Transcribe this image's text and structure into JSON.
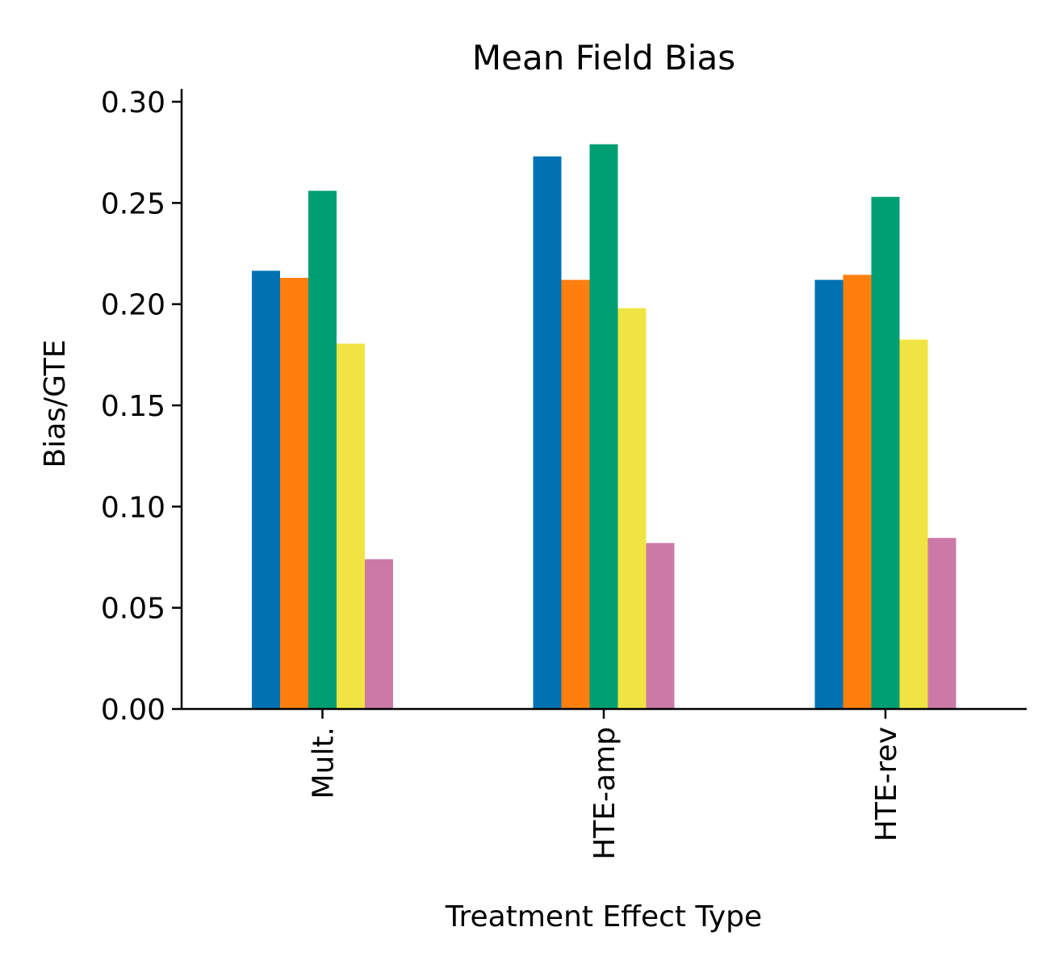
{
  "chart_data": {
    "type": "bar",
    "title": "Mean Field Bias",
    "xlabel": "Treatment Effect Type",
    "ylabel": "Bias/GTE",
    "categories": [
      "Mult.",
      "HTE-amp",
      "HTE-rev"
    ],
    "ylim": [
      0,
      0.3
    ],
    "yticks": [
      "0.00",
      "0.05",
      "0.10",
      "0.15",
      "0.20",
      "0.25",
      "0.30"
    ],
    "ytick_values": [
      0,
      0.05,
      0.1,
      0.15,
      0.2,
      0.25,
      0.3
    ],
    "grid": false,
    "legend": "none",
    "series": [
      {
        "name": "series-1",
        "color": "#0072B2",
        "values": [
          0.2165,
          0.273,
          0.212
        ]
      },
      {
        "name": "series-2",
        "color": "#FF7F0E",
        "values": [
          0.213,
          0.212,
          0.2145
        ]
      },
      {
        "name": "series-3",
        "color": "#009E73",
        "values": [
          0.256,
          0.279,
          0.253
        ]
      },
      {
        "name": "series-4",
        "color": "#F0E442",
        "values": [
          0.1805,
          0.198,
          0.1825
        ]
      },
      {
        "name": "series-5",
        "color": "#CC79A7",
        "values": [
          0.074,
          0.082,
          0.0845
        ]
      }
    ]
  }
}
